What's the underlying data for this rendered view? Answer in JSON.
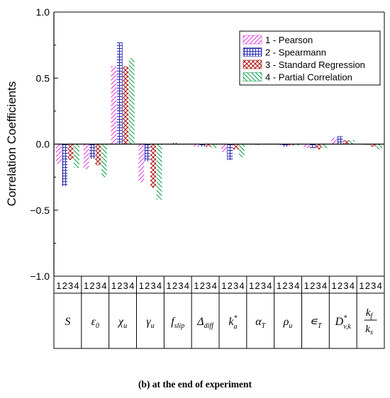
{
  "chart_data": {
    "type": "bar",
    "ylabel": "Correlation Coefficients",
    "ylim": [
      -1.0,
      1.0
    ],
    "yticks": [
      "1.0",
      "0.5",
      "0.0",
      "-0.5",
      "-1.0"
    ],
    "bar_labels": [
      "1",
      "2",
      "3",
      "4"
    ],
    "categories": [
      {
        "id": "S",
        "main": "S",
        "sub": "",
        "sup": ""
      },
      {
        "id": "epsilon0",
        "main": "ε",
        "sub": "0",
        "sup": ""
      },
      {
        "id": "chi_u",
        "main": "χ",
        "sub": "u",
        "sup": ""
      },
      {
        "id": "gamma_u",
        "main": "γ",
        "sub": "u",
        "sup": ""
      },
      {
        "id": "f_slip",
        "main": "f",
        "sub": "slip",
        "sup": ""
      },
      {
        "id": "delta_diff",
        "main": "Δ",
        "sub": "diff",
        "sup": ""
      },
      {
        "id": "k_a_star",
        "main": "k",
        "sub": "a",
        "sup": "*"
      },
      {
        "id": "alpha_T",
        "main": "α",
        "sub": "T",
        "sup": ""
      },
      {
        "id": "rho_u",
        "main": "ρ",
        "sub": "u",
        "sup": ""
      },
      {
        "id": "eps_T",
        "main": "∊",
        "sub": "T",
        "sup": ""
      },
      {
        "id": "D_vk_star",
        "main": "D",
        "sub": "v,k",
        "sup": "*"
      },
      {
        "id": "kf_ks",
        "main": "",
        "sub": "",
        "sup": "",
        "frac": {
          "num": "k",
          "num_sub": "f",
          "den": "k",
          "den_sub": "s"
        }
      }
    ],
    "series": [
      {
        "name": "1 - Pearson",
        "color": "#e040e0",
        "pattern": "diag-right",
        "values": [
          -0.15,
          -0.19,
          0.59,
          -0.29,
          0.0,
          -0.02,
          -0.06,
          0.0,
          -0.01,
          -0.03,
          0.05,
          0.0
        ]
      },
      {
        "name": "2 - Spearmann",
        "color": "#2b2bb0",
        "pattern": "grid",
        "values": [
          -0.32,
          -0.11,
          0.77,
          -0.13,
          0.01,
          -0.02,
          -0.12,
          0.0,
          -0.02,
          -0.03,
          0.06,
          0.0
        ]
      },
      {
        "name": "3 - Standard Regression",
        "color": "#b01818",
        "pattern": "cross",
        "values": [
          -0.12,
          -0.16,
          0.59,
          -0.33,
          0.0,
          -0.02,
          -0.04,
          0.0,
          -0.01,
          -0.04,
          0.03,
          -0.02
        ]
      },
      {
        "name": "4 - Partial Correlation",
        "color": "#12a04a",
        "pattern": "diag-left",
        "values": [
          -0.18,
          -0.25,
          0.65,
          -0.42,
          0.0,
          -0.03,
          -0.1,
          0.0,
          -0.01,
          -0.03,
          0.03,
          -0.04
        ]
      }
    ],
    "legend_position": "top-right",
    "grid": false
  },
  "caption": {
    "bold": "(b) at the end of experiment"
  }
}
